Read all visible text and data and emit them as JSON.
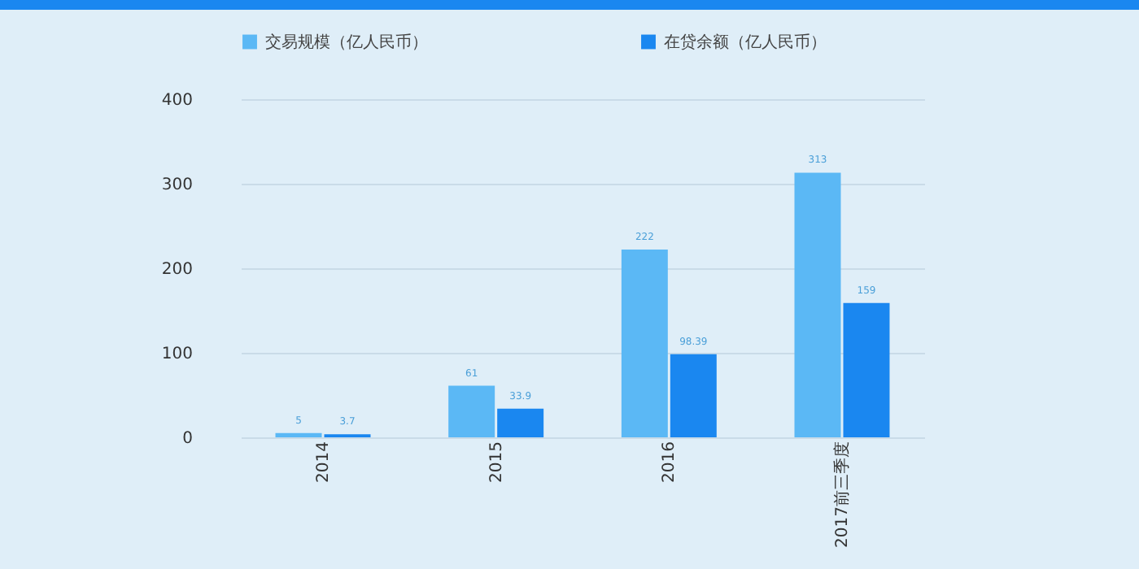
{
  "chart_data": {
    "type": "bar",
    "categories": [
      "2014",
      "2015",
      "2016",
      "2017前三季度"
    ],
    "series": [
      {
        "name": "交易规模（亿人民币）",
        "color": "#5bb8f5",
        "values": [
          5,
          61,
          222,
          313
        ]
      },
      {
        "name": "在贷余额（亿人民币）",
        "color": "#1a87f0",
        "values": [
          3.7,
          33.9,
          98.39,
          159
        ]
      }
    ],
    "ylim": [
      0,
      400
    ],
    "yticks": [
      0,
      100,
      200,
      300,
      400
    ],
    "grid": "y",
    "legend": "top",
    "data_labels": true
  }
}
